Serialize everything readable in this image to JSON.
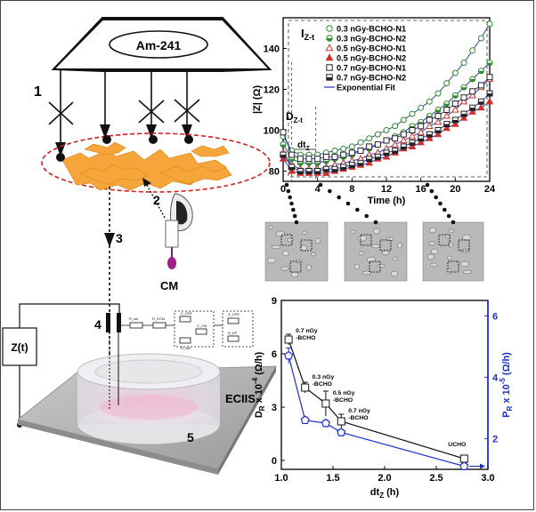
{
  "diagram": {
    "source_label": "Am-241",
    "label_1": "1",
    "label_2": "2",
    "label_3": "3",
    "label_4": "4",
    "label_5": "5",
    "cm_label": "CM",
    "ecis_label": "ECIIS",
    "zt_label": "Z(t)",
    "circuit_labels": [
      "R_sol",
      "R_ECM",
      "Z_CPE",
      "C_CM",
      "R_cell",
      "Z_CPE",
      "R_EP"
    ]
  },
  "micrographs": {
    "count": 3
  },
  "chart_data": [
    {
      "type": "scatter",
      "ylabel": "|Z| (Ω)",
      "xlabel": "Time (h)",
      "xlim": [
        0,
        24
      ],
      "ylim": [
        75,
        155
      ],
      "xticks": [
        0,
        4,
        8,
        12,
        16,
        20,
        24
      ],
      "yticks": [
        80,
        100,
        120,
        140
      ],
      "annotations": {
        "izt": "I",
        "izt_sub": "Z-t",
        "dzt": "D",
        "dzt_sub": "Z-t",
        "dtz": "dt",
        "dtz_sub": "Z"
      },
      "legend_position": "top-right",
      "series": [
        {
          "name": "0.3 nGy-BCHO-N1",
          "color": "#2e8b2e",
          "marker": "circle-open",
          "x": [
            0,
            1,
            2,
            3,
            4,
            5,
            6,
            7,
            8,
            9,
            10,
            11,
            12,
            13,
            14,
            15,
            16,
            17,
            18,
            19,
            20,
            21,
            22,
            23,
            24
          ],
          "y": [
            97,
            90,
            88,
            88,
            88,
            89,
            90,
            91,
            92,
            94,
            96,
            98,
            100,
            102,
            105,
            108,
            111,
            114,
            118,
            123,
            128,
            133,
            139,
            145,
            152
          ]
        },
        {
          "name": "0.3 nGy-BCHO-N2",
          "color": "#2e8b2e",
          "marker": "circle-half",
          "x": [
            0,
            1,
            2,
            3,
            4,
            5,
            6,
            7,
            8,
            9,
            10,
            11,
            12,
            13,
            14,
            15,
            16,
            17,
            18,
            19,
            20,
            21,
            22,
            23,
            24
          ],
          "y": [
            93,
            86,
            84,
            84,
            84,
            85,
            86,
            87,
            88,
            90,
            91,
            93,
            95,
            97,
            99,
            102,
            104,
            107,
            110,
            113,
            117,
            121,
            125,
            129,
            133
          ]
        },
        {
          "name": "0.5 nGy-BCHO-N1",
          "color": "#d03030",
          "marker": "triangle-open",
          "x": [
            0,
            1,
            2,
            3,
            4,
            5,
            6,
            7,
            8,
            9,
            10,
            11,
            12,
            13,
            14,
            15,
            16,
            17,
            18,
            19,
            20,
            21,
            22,
            23,
            24
          ],
          "y": [
            89,
            83,
            81,
            81,
            81,
            82,
            83,
            84,
            85,
            86,
            88,
            89,
            91,
            93,
            95,
            97,
            99,
            102,
            104,
            107,
            110,
            114,
            117,
            121,
            125
          ]
        },
        {
          "name": "0.5 nGy-BCHO-N2",
          "color": "#d03030",
          "marker": "triangle-filled",
          "x": [
            0,
            1,
            2,
            3,
            4,
            5,
            6,
            7,
            8,
            9,
            10,
            11,
            12,
            13,
            14,
            15,
            16,
            17,
            18,
            19,
            20,
            21,
            22,
            23,
            24
          ],
          "y": [
            86,
            80,
            79,
            79,
            79,
            79,
            80,
            81,
            82,
            83,
            84,
            86,
            87,
            89,
            91,
            92,
            94,
            96,
            98,
            101,
            103,
            106,
            109,
            111,
            114
          ]
        },
        {
          "name": "0.7 nGy-BCHO-N1",
          "color": "#222222",
          "marker": "square-open",
          "x": [
            0,
            1,
            2,
            3,
            4,
            5,
            6,
            7,
            8,
            9,
            10,
            11,
            12,
            13,
            14,
            15,
            16,
            17,
            18,
            19,
            20,
            21,
            22,
            23,
            24
          ],
          "y": [
            99,
            88,
            86,
            86,
            86,
            87,
            87,
            88,
            89,
            90,
            92,
            93,
            95,
            96,
            98,
            100,
            102,
            105,
            107,
            110,
            113,
            116,
            119,
            122,
            126
          ]
        },
        {
          "name": "0.7 nGy-BCHO-N2",
          "color": "#222222",
          "marker": "square-half",
          "x": [
            0,
            1,
            2,
            3,
            4,
            5,
            6,
            7,
            8,
            9,
            10,
            11,
            12,
            13,
            14,
            15,
            16,
            17,
            18,
            19,
            20,
            21,
            22,
            23,
            24
          ],
          "y": [
            88,
            82,
            80,
            80,
            80,
            81,
            81,
            82,
            83,
            84,
            86,
            87,
            89,
            90,
            92,
            94,
            96,
            98,
            100,
            103,
            105,
            108,
            111,
            114,
            118
          ]
        }
      ],
      "fit_label": "Exponential Fit"
    },
    {
      "type": "line",
      "xlabel": "dt",
      "xlabel_sub": "Z",
      "xlabel_unit": " (h)",
      "ylabel_left": "D",
      "ylabel_left_sub": "R",
      "ylabel_left_rest": " x 10",
      "ylabel_left_exp": "-4",
      "ylabel_left_unit": " (Ω/h)",
      "ylabel_right": "P",
      "ylabel_right_sub": "R",
      "ylabel_right_rest": " x 10",
      "ylabel_right_exp": "-5",
      "ylabel_right_unit": " (Ω/h)",
      "xlim": [
        1.0,
        3.0
      ],
      "ylim_left": [
        -0.5,
        9
      ],
      "ylim_right": [
        1,
        6.5
      ],
      "xticks": [
        1.0,
        1.5,
        2.0,
        2.5,
        3.0
      ],
      "yticks_left": [
        0,
        3,
        6,
        9
      ],
      "yticks_right": [
        2,
        4,
        6
      ],
      "series": [
        {
          "name": "D_R",
          "axis": "left",
          "color": "#111111",
          "marker": "square-open",
          "x": [
            1.07,
            1.23,
            1.43,
            1.58,
            2.77
          ],
          "y": [
            6.8,
            4.1,
            3.2,
            2.2,
            0.1
          ],
          "err": [
            0.3,
            0.3,
            0.7,
            0.4,
            0.2
          ]
        },
        {
          "name": "P_R",
          "axis": "right",
          "color": "#1a2fd0",
          "marker": "pentagon-open",
          "x": [
            1.07,
            1.23,
            1.43,
            1.58,
            2.77
          ],
          "y": [
            4.7,
            2.6,
            2.5,
            2.2,
            1.1
          ],
          "err": [
            0.25,
            0.1,
            0.1,
            0.1,
            0.1
          ]
        }
      ],
      "point_labels": [
        {
          "lines": [
            "0.7 nGy",
            "-BCHO"
          ]
        },
        {
          "lines": [
            "0.3 nGy",
            "-BCHO"
          ]
        },
        {
          "lines": [
            "0.5 nGy",
            "-BCHO"
          ]
        },
        {
          "lines": [
            "0.7 nGy",
            "-BCHO"
          ]
        },
        {
          "lines": [
            "UCHO"
          ]
        }
      ]
    }
  ]
}
